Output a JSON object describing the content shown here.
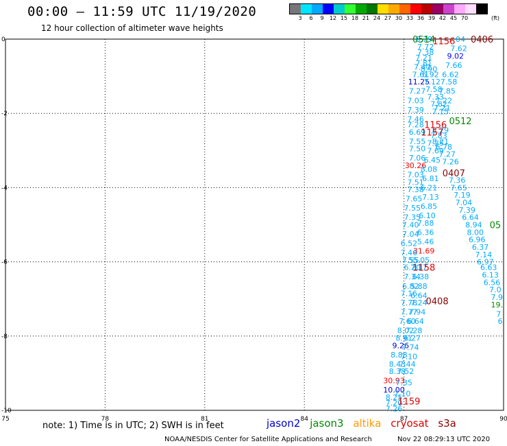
{
  "header": {
    "title": "00:00 – 11:59 UTC 11/19/2020",
    "subtitle": "12 hour collection of altimeter wave heights"
  },
  "color_scale": {
    "unit_label": "(ft)",
    "colors": [
      "#777777",
      "#00e5ff",
      "#00aaff",
      "#0000ff",
      "#00cccc",
      "#33ff33",
      "#00aa00",
      "#007700",
      "#ffdd00",
      "#ffaa00",
      "#ff6600",
      "#ff0000",
      "#bb0000",
      "#990066",
      "#cc44cc",
      "#ffaaff",
      "#ffddff",
      "#000000"
    ],
    "labels": [
      "3",
      "6",
      "9",
      "12",
      "15",
      "18",
      "21",
      "24",
      "27",
      "30",
      "33",
      "36",
      "39",
      "42",
      "45",
      "70"
    ]
  },
  "footer": {
    "note": "note: 1) Time is in UTC; 2) SWH is in feet",
    "legend": [
      {
        "name": "jason2",
        "color": "#0000cc"
      },
      {
        "name": "jason3",
        "color": "#008800"
      },
      {
        "name": "altika",
        "color": "#ff9900"
      },
      {
        "name": "cryosat",
        "color": "#dd0000"
      },
      {
        "name": "s3a",
        "color": "#880000"
      }
    ],
    "credit": "NOAA/NESDIS Center for Satellite Applications and Research",
    "stamp": "Nov 22 08:29:13 UTC 2020"
  },
  "chart_data": {
    "type": "scatter",
    "title": "00:00 – 11:59 UTC 11/19/2020",
    "xlim": [
      75,
      90
    ],
    "ylim": [
      -10,
      0
    ],
    "x_ticks": [
      75,
      78,
      81,
      84,
      87,
      90
    ],
    "y_ticks": [
      0,
      -2,
      -4,
      -6,
      -8,
      -10
    ],
    "grid": true,
    "pass_labels": [
      {
        "text": "0514",
        "x": 87.6,
        "y": 0.0,
        "color": "#008800"
      },
      {
        "text": "1156",
        "x": 88.2,
        "y": -0.05,
        "color": "#dd0000"
      },
      {
        "text": "0406",
        "x": 89.35,
        "y": 0.0,
        "color": "#880000"
      },
      {
        "text": "0512",
        "x": 88.7,
        "y": -2.2,
        "color": "#008800"
      },
      {
        "text": "1156",
        "x": 87.95,
        "y": -2.3,
        "color": "#dd0000"
      },
      {
        "text": "1157",
        "x": 87.85,
        "y": -2.5,
        "color": "#dd0000"
      },
      {
        "text": "0407",
        "x": 88.5,
        "y": -3.6,
        "color": "#880000"
      },
      {
        "text": "05",
        "x": 89.75,
        "y": -5.0,
        "color": "#008800"
      },
      {
        "text": "1158",
        "x": 87.6,
        "y": -6.15,
        "color": "#dd0000"
      },
      {
        "text": "0408",
        "x": 88.0,
        "y": -7.05,
        "color": "#880000"
      },
      {
        "text": "1159",
        "x": 87.15,
        "y": -9.75,
        "color": "#dd0000"
      }
    ],
    "points": [
      {
        "x": 87.6,
        "y": 0.0,
        "v": "6.79",
        "c": "#00aaff"
      },
      {
        "x": 88.7,
        "y": 0.0,
        "v": "04",
        "c": "#00aaff"
      },
      {
        "x": 87.65,
        "y": -0.2,
        "v": "7.72",
        "c": "#00aaff"
      },
      {
        "x": 88.65,
        "y": -0.25,
        "v": "7.62",
        "c": "#00aaff"
      },
      {
        "x": 87.65,
        "y": -0.35,
        "v": "7.38",
        "c": "#00aaff"
      },
      {
        "x": 87.6,
        "y": -0.5,
        "v": "7.21",
        "c": "#00aaff"
      },
      {
        "x": 88.55,
        "y": -0.45,
        "v": "9.02",
        "c": "#0000ff"
      },
      {
        "x": 87.6,
        "y": -0.65,
        "v": "7.81",
        "c": "#00aaff"
      },
      {
        "x": 87.55,
        "y": -0.75,
        "v": "7.40",
        "c": "#00aaff"
      },
      {
        "x": 87.75,
        "y": -0.8,
        "v": "8.90",
        "c": "#00aaff"
      },
      {
        "x": 88.5,
        "y": -0.7,
        "v": "7.66",
        "c": "#00aaff"
      },
      {
        "x": 87.5,
        "y": -0.95,
        "v": "7.61",
        "c": "#00aaff"
      },
      {
        "x": 87.8,
        "y": -0.95,
        "v": "6.92",
        "c": "#00aaff"
      },
      {
        "x": 88.4,
        "y": -0.95,
        "v": "6.62",
        "c": "#00aaff"
      },
      {
        "x": 87.45,
        "y": -1.15,
        "v": "11.25",
        "c": "#0000cc"
      },
      {
        "x": 87.85,
        "y": -1.15,
        "v": "7.12",
        "c": "#00aaff"
      },
      {
        "x": 88.35,
        "y": -1.15,
        "v": "7.58",
        "c": "#00aaff"
      },
      {
        "x": 87.4,
        "y": -1.4,
        "v": "7.27",
        "c": "#00aaff"
      },
      {
        "x": 87.9,
        "y": -1.35,
        "v": "7.58",
        "c": "#00aaff"
      },
      {
        "x": 88.3,
        "y": -1.4,
        "v": "7.85",
        "c": "#00aaff"
      },
      {
        "x": 87.35,
        "y": -1.65,
        "v": "7.03",
        "c": "#00aaff"
      },
      {
        "x": 87.95,
        "y": -1.55,
        "v": "7.33",
        "c": "#00aaff"
      },
      {
        "x": 88.2,
        "y": -1.65,
        "v": "7.22",
        "c": "#00aaff"
      },
      {
        "x": 88.05,
        "y": -1.75,
        "v": "7.62",
        "c": "#00aaff"
      },
      {
        "x": 87.35,
        "y": -1.9,
        "v": "7.39",
        "c": "#00aaff"
      },
      {
        "x": 88.15,
        "y": -1.85,
        "v": "7.21",
        "c": "#00aaff"
      },
      {
        "x": 88.1,
        "y": -1.95,
        "v": "7.15",
        "c": "#00aaff"
      },
      {
        "x": 87.35,
        "y": -2.15,
        "v": "7.46",
        "c": "#00aaff"
      },
      {
        "x": 87.35,
        "y": -2.3,
        "v": "7.28",
        "c": "#00aaff"
      },
      {
        "x": 87.4,
        "y": -2.5,
        "v": "6.69",
        "c": "#00aaff"
      },
      {
        "x": 88.1,
        "y": -2.45,
        "v": "8.29",
        "c": "#00aaff"
      },
      {
        "x": 88.05,
        "y": -2.6,
        "v": "7.83",
        "c": "#00aaff"
      },
      {
        "x": 87.4,
        "y": -2.75,
        "v": "7.55",
        "c": "#00aaff"
      },
      {
        "x": 88.1,
        "y": -2.75,
        "v": "8.21",
        "c": "#00aaff"
      },
      {
        "x": 87.95,
        "y": -2.8,
        "v": "7.25",
        "c": "#00aaff"
      },
      {
        "x": 87.4,
        "y": -2.95,
        "v": "7.50",
        "c": "#00aaff"
      },
      {
        "x": 88.2,
        "y": -2.9,
        "v": "6.78",
        "c": "#00aaff"
      },
      {
        "x": 87.95,
        "y": -3.0,
        "v": "7.69",
        "c": "#00aaff"
      },
      {
        "x": 87.4,
        "y": -3.2,
        "v": "7.06",
        "c": "#00aaff"
      },
      {
        "x": 88.3,
        "y": -3.1,
        "v": "7.27",
        "c": "#00aaff"
      },
      {
        "x": 87.85,
        "y": -3.25,
        "v": "6.45",
        "c": "#00aaff"
      },
      {
        "x": 88.4,
        "y": -3.3,
        "v": "7.26",
        "c": "#00aaff"
      },
      {
        "x": 87.35,
        "y": -3.4,
        "v": "30.26",
        "c": "#ff0000"
      },
      {
        "x": 87.75,
        "y": -3.5,
        "v": "8.08",
        "c": "#00aaff"
      },
      {
        "x": 87.35,
        "y": -3.65,
        "v": "7.03",
        "c": "#00aaff"
      },
      {
        "x": 88.6,
        "y": -3.8,
        "v": "7.36",
        "c": "#00aaff"
      },
      {
        "x": 87.8,
        "y": -3.75,
        "v": "6.81",
        "c": "#00aaff"
      },
      {
        "x": 87.35,
        "y": -3.85,
        "v": "7.51",
        "c": "#00aaff"
      },
      {
        "x": 88.65,
        "y": -4.0,
        "v": "7.65",
        "c": "#00aaff"
      },
      {
        "x": 87.75,
        "y": -4.0,
        "v": "6.21",
        "c": "#00aaff"
      },
      {
        "x": 87.35,
        "y": -4.05,
        "v": "7.38",
        "c": "#00aaff"
      },
      {
        "x": 88.75,
        "y": -4.2,
        "v": "7.19",
        "c": "#00aaff"
      },
      {
        "x": 87.8,
        "y": -4.25,
        "v": "7.13",
        "c": "#00aaff"
      },
      {
        "x": 87.3,
        "y": -4.3,
        "v": "7.65",
        "c": "#00aaff"
      },
      {
        "x": 88.8,
        "y": -4.4,
        "v": "7.04",
        "c": "#00aaff"
      },
      {
        "x": 87.75,
        "y": -4.5,
        "v": "6.85",
        "c": "#00aaff"
      },
      {
        "x": 87.25,
        "y": -4.55,
        "v": "7.55",
        "c": "#00aaff"
      },
      {
        "x": 88.9,
        "y": -4.6,
        "v": "7.39",
        "c": "#00aaff"
      },
      {
        "x": 87.7,
        "y": -4.75,
        "v": "6.10",
        "c": "#00aaff"
      },
      {
        "x": 87.25,
        "y": -4.8,
        "v": "7.35",
        "c": "#00aaff"
      },
      {
        "x": 89.0,
        "y": -4.8,
        "v": "6.64",
        "c": "#00aaff"
      },
      {
        "x": 87.65,
        "y": -4.95,
        "v": "7.88",
        "c": "#00aaff"
      },
      {
        "x": 89.1,
        "y": -5.0,
        "v": "8.94",
        "c": "#00aaff"
      },
      {
        "x": 87.2,
        "y": -5.0,
        "v": "7.40",
        "c": "#00aaff"
      },
      {
        "x": 89.15,
        "y": -5.2,
        "v": "8.00",
        "c": "#00aaff"
      },
      {
        "x": 87.65,
        "y": -5.2,
        "v": "6.36",
        "c": "#00aaff"
      },
      {
        "x": 87.2,
        "y": -5.25,
        "v": "7.04",
        "c": "#00aaff"
      },
      {
        "x": 89.2,
        "y": -5.4,
        "v": "6.96",
        "c": "#00aaff"
      },
      {
        "x": 87.65,
        "y": -5.45,
        "v": "5.46",
        "c": "#00aaff"
      },
      {
        "x": 87.15,
        "y": -5.5,
        "v": "6.52",
        "c": "#00aaff"
      },
      {
        "x": 89.3,
        "y": -5.6,
        "v": "6.37",
        "c": "#00aaff"
      },
      {
        "x": 87.6,
        "y": -5.7,
        "v": "31.69",
        "c": "#ff0000"
      },
      {
        "x": 87.15,
        "y": -5.75,
        "v": "7.46",
        "c": "#00aaff"
      },
      {
        "x": 89.4,
        "y": -5.8,
        "v": "7.14",
        "c": "#00aaff"
      },
      {
        "x": 87.2,
        "y": -5.95,
        "v": "7.55",
        "c": "#00aaff"
      },
      {
        "x": 87.45,
        "y": -5.95,
        "v": "55.05",
        "c": "#00aaff"
      },
      {
        "x": 89.45,
        "y": -6.0,
        "v": "6.97",
        "c": "#00aaff"
      },
      {
        "x": 87.25,
        "y": -6.15,
        "v": "6.20",
        "c": "#00aaff"
      },
      {
        "x": 87.45,
        "y": -6.15,
        "v": "7.17",
        "c": "#00aaff"
      },
      {
        "x": 89.55,
        "y": -6.15,
        "v": "6.63",
        "c": "#00aaff"
      },
      {
        "x": 87.25,
        "y": -6.4,
        "v": "7.34",
        "c": "#00aaff"
      },
      {
        "x": 87.5,
        "y": -6.4,
        "v": "6.38",
        "c": "#00aaff"
      },
      {
        "x": 89.6,
        "y": -6.35,
        "v": "6.13",
        "c": "#00aaff"
      },
      {
        "x": 87.2,
        "y": -6.65,
        "v": "6.82",
        "c": "#00aaff"
      },
      {
        "x": 87.45,
        "y": -6.65,
        "v": "5.88",
        "c": "#00aaff"
      },
      {
        "x": 89.65,
        "y": -6.55,
        "v": "6.56",
        "c": "#00aaff"
      },
      {
        "x": 87.15,
        "y": -6.85,
        "v": "7.16",
        "c": "#00aaff"
      },
      {
        "x": 87.45,
        "y": -6.9,
        "v": "6.64",
        "c": "#00aaff"
      },
      {
        "x": 89.75,
        "y": -6.75,
        "v": "7.0",
        "c": "#00aaff"
      },
      {
        "x": 87.15,
        "y": -7.1,
        "v": "7.78",
        "c": "#00aaff"
      },
      {
        "x": 87.45,
        "y": -7.1,
        "v": "7.24",
        "c": "#00aaff"
      },
      {
        "x": 89.8,
        "y": -6.95,
        "v": "7.9",
        "c": "#00aaff"
      },
      {
        "x": 87.15,
        "y": -7.35,
        "v": "7.77",
        "c": "#00aaff"
      },
      {
        "x": 87.4,
        "y": -7.35,
        "v": "7.94",
        "c": "#00aaff"
      },
      {
        "x": 89.8,
        "y": -7.15,
        "v": "19.",
        "c": "#008800"
      },
      {
        "x": 87.1,
        "y": -7.6,
        "v": "7.60",
        "c": "#00aaff"
      },
      {
        "x": 87.35,
        "y": -7.6,
        "v": "6.64",
        "c": "#00aaff"
      },
      {
        "x": 89.85,
        "y": -7.4,
        "v": "7",
        "c": "#00aaff"
      },
      {
        "x": 87.05,
        "y": -7.85,
        "v": "8.02",
        "c": "#00aaff"
      },
      {
        "x": 87.3,
        "y": -7.85,
        "v": "7.28",
        "c": "#00aaff"
      },
      {
        "x": 89.9,
        "y": -7.6,
        "v": "6",
        "c": "#00aaff"
      },
      {
        "x": 87.0,
        "y": -8.05,
        "v": "8.91",
        "c": "#00aaff"
      },
      {
        "x": 87.25,
        "y": -8.05,
        "v": "6.27",
        "c": "#00aaff"
      },
      {
        "x": 86.9,
        "y": -8.25,
        "v": "9.26",
        "c": "#0000cc"
      },
      {
        "x": 87.2,
        "y": -8.3,
        "v": "7.74",
        "c": "#00aaff"
      },
      {
        "x": 86.85,
        "y": -8.5,
        "v": "8.88",
        "c": "#00aaff"
      },
      {
        "x": 87.15,
        "y": -8.55,
        "v": "7.10",
        "c": "#00aaff"
      },
      {
        "x": 86.8,
        "y": -8.75,
        "v": "8.43",
        "c": "#00aaff"
      },
      {
        "x": 87.1,
        "y": -8.75,
        "v": "7.44",
        "c": "#00aaff"
      },
      {
        "x": 86.8,
        "y": -8.95,
        "v": "8.38",
        "c": "#00aaff"
      },
      {
        "x": 87.05,
        "y": -8.95,
        "v": "7.52",
        "c": "#00aaff"
      },
      {
        "x": 86.7,
        "y": -9.2,
        "v": "30.93",
        "c": "#ff0000"
      },
      {
        "x": 87.0,
        "y": -9.25,
        "v": "7.35",
        "c": "#00aaff"
      },
      {
        "x": 86.7,
        "y": -9.45,
        "v": "10.00",
        "c": "#0000cc"
      },
      {
        "x": 86.7,
        "y": -9.65,
        "v": "8.25",
        "c": "#00aaff"
      },
      {
        "x": 86.95,
        "y": -9.55,
        "v": "7.10",
        "c": "#00aaff"
      },
      {
        "x": 86.7,
        "y": -9.8,
        "v": "7.20",
        "c": "#00aaff"
      },
      {
        "x": 86.7,
        "y": -9.95,
        "v": "7.26",
        "c": "#00aaff"
      }
    ]
  }
}
